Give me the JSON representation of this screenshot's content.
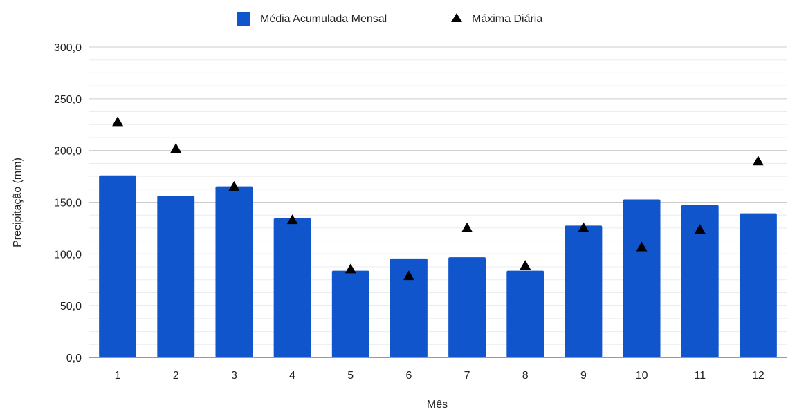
{
  "chart_data": {
    "type": "bar",
    "title": "",
    "xlabel": "Mês",
    "ylabel": "Precipitação (mm)",
    "ylim": [
      0,
      300
    ],
    "y_ticks": [
      "0,0",
      "50,0",
      "100,0",
      "150,0",
      "200,0",
      "250,0",
      "300,0"
    ],
    "y_tick_values": [
      0,
      50,
      100,
      150,
      200,
      250,
      300
    ],
    "categories": [
      "1",
      "2",
      "3",
      "4",
      "5",
      "6",
      "7",
      "8",
      "9",
      "10",
      "11",
      "12"
    ],
    "grid": true,
    "legend_position": "top-center",
    "series": [
      {
        "name": "Média Acumulada Mensal",
        "type": "bar",
        "color": "#1155cc",
        "values": [
          175.9,
          156.3,
          165.3,
          134.4,
          83.8,
          95.6,
          96.8,
          83.8,
          127.4,
          152.7,
          147.2,
          139.2
        ]
      },
      {
        "name": "Máxima Diária",
        "type": "scatter",
        "marker": "triangle",
        "color": "#000000",
        "values": [
          227.6,
          201.8,
          165.1,
          132.9,
          85.3,
          78.8,
          125.1,
          88.8,
          125.3,
          106.6,
          123.6,
          189.6
        ]
      }
    ]
  }
}
